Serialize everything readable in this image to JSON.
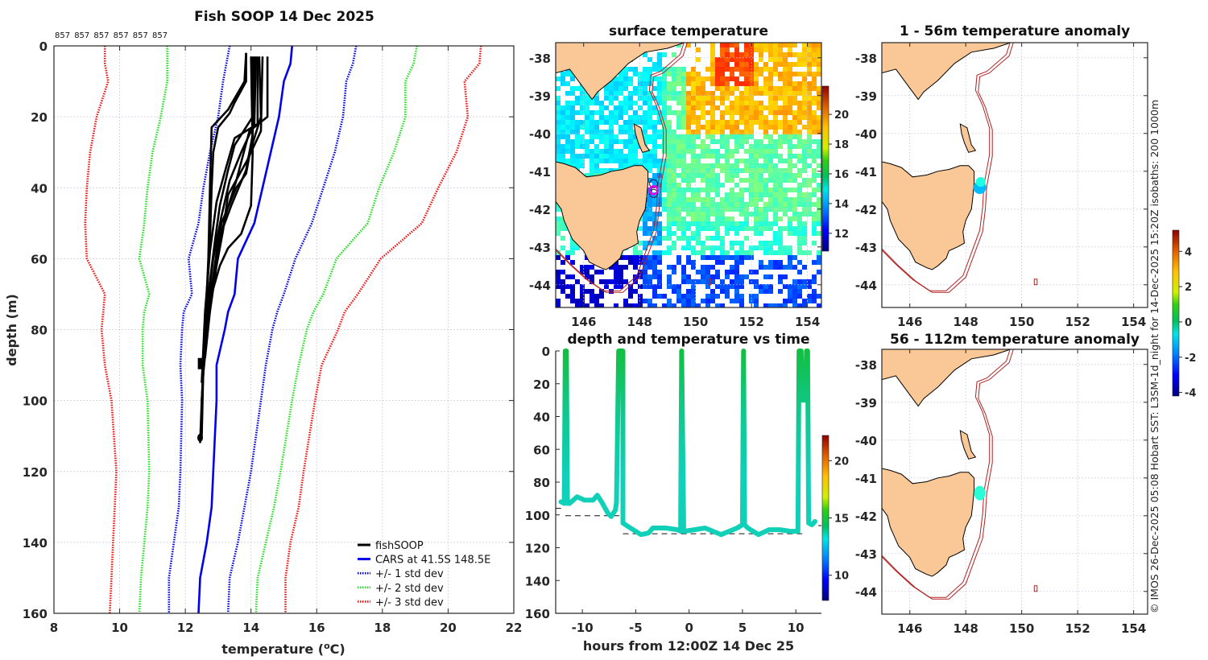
{
  "figure": {
    "credit": "© IMOS 26-Dec-2025 05:08 Hobart SST: L3SM-1d_night for 14-Dec-2025 15:20Z isobaths: 200  1000m"
  },
  "colors": {
    "land": "#f9c896",
    "isobath": "#b22222",
    "cars": "#0000ee",
    "std1": "#0000dd",
    "std2": "#22dd22",
    "std3": "#ee1111",
    "fishsoop": "#000000",
    "marker": "#ee00ee",
    "trace": "#10d0b8"
  },
  "chart_data": [
    {
      "id": "profile",
      "type": "line",
      "title": "Fish SOOP 14 Dec 2025",
      "top_labels": [
        "857",
        "857",
        "857",
        "857",
        "857",
        "857"
      ],
      "xlabel": "temperature (°C)",
      "xlabel_parts": {
        "pre": "temperature (",
        "sup": "o",
        "post": "C)"
      },
      "ylabel": "depth (m)",
      "xlim": [
        8,
        22
      ],
      "ylim": [
        160,
        0
      ],
      "xticks": [
        "8",
        "10",
        "12",
        "14",
        "16",
        "18",
        "20",
        "22"
      ],
      "yticks": [
        "0",
        "20",
        "40",
        "60",
        "80",
        "100",
        "120",
        "140",
        "160"
      ],
      "grid": true,
      "legend_position": "bottom-right",
      "legend": [
        {
          "label": "fishSOOP",
          "style": "solid",
          "color": "#000000"
        },
        {
          "label": "CARS at 41.5S 148.5E",
          "style": "solid",
          "color": "#0000ee"
        },
        {
          "label": "+/- 1 std dev",
          "style": "dotted",
          "color": "#0000dd"
        },
        {
          "label": "+/- 2 std dev",
          "style": "dotted",
          "color": "#22dd22"
        },
        {
          "label": "+/- 3 std dev",
          "style": "dotted",
          "color": "#ee1111"
        }
      ],
      "depth": [
        0,
        5,
        10,
        20,
        30,
        40,
        50,
        60,
        70,
        75,
        80,
        90,
        100,
        120,
        130,
        140,
        150,
        160
      ],
      "series": [
        {
          "name": "CARS at 41.5S 148.5E",
          "values": [
            15.25,
            15.2,
            15.0,
            14.85,
            14.6,
            14.35,
            14.1,
            13.6,
            13.5,
            13.3,
            13.2,
            12.95,
            12.95,
            12.85,
            12.8,
            12.65,
            12.45,
            12.4
          ]
        },
        {
          "name": "+1 std dev",
          "values": [
            17.2,
            17.1,
            16.9,
            16.8,
            16.55,
            16.2,
            15.85,
            15.35,
            15.0,
            14.8,
            14.65,
            14.45,
            14.3,
            14.0,
            13.8,
            13.6,
            13.35,
            13.3
          ]
        },
        {
          "name": "-1 std dev",
          "values": [
            13.35,
            13.25,
            13.15,
            13.0,
            12.75,
            12.55,
            12.4,
            12.1,
            12.2,
            11.95,
            11.9,
            11.85,
            11.9,
            11.85,
            11.8,
            11.65,
            11.5,
            11.5
          ]
        },
        {
          "name": "+2 std dev",
          "values": [
            19.05,
            18.95,
            18.7,
            18.7,
            18.35,
            17.9,
            17.55,
            16.6,
            16.2,
            15.9,
            15.7,
            15.45,
            15.25,
            14.9,
            14.7,
            14.45,
            14.2,
            14.15
          ]
        },
        {
          "name": "-2 std dev",
          "values": [
            11.45,
            11.45,
            11.45,
            11.25,
            11.0,
            10.85,
            10.75,
            10.6,
            10.9,
            10.75,
            10.7,
            10.7,
            10.85,
            10.9,
            10.85,
            10.75,
            10.65,
            10.6
          ]
        },
        {
          "name": "+3 std dev",
          "values": [
            21.0,
            20.95,
            20.5,
            20.6,
            20.25,
            19.7,
            19.2,
            17.95,
            17.25,
            16.85,
            16.65,
            16.15,
            15.95,
            15.6,
            15.45,
            15.2,
            15.05,
            15.05
          ]
        },
        {
          "name": "-3 std dev",
          "values": [
            9.55,
            9.55,
            9.65,
            9.3,
            9.1,
            9.0,
            8.95,
            9.0,
            9.55,
            9.5,
            9.45,
            9.55,
            9.75,
            9.9,
            9.85,
            9.8,
            9.75,
            9.7
          ]
        }
      ],
      "fishsoop_profiles": [
        {
          "depth": [
            2,
            10,
            18,
            23,
            40,
            60,
            80,
            92,
            100,
            112
          ],
          "values": [
            13.85,
            13.8,
            13.3,
            12.8,
            12.75,
            12.7,
            12.6,
            12.55,
            12.5,
            12.45
          ]
        },
        {
          "depth": [
            2,
            10,
            16,
            19,
            23,
            30,
            40,
            55,
            70,
            90,
            110
          ],
          "values": [
            13.85,
            13.85,
            13.5,
            13.35,
            13.0,
            12.85,
            12.8,
            12.75,
            12.65,
            12.55,
            12.5
          ]
        },
        {
          "depth": [
            3,
            20,
            28,
            35,
            45,
            55,
            70,
            90
          ],
          "values": [
            14.05,
            14.05,
            13.5,
            13.3,
            13.05,
            12.9,
            12.7,
            12.55
          ]
        },
        {
          "depth": [
            3,
            22,
            30,
            38,
            48,
            60,
            75,
            95
          ],
          "values": [
            14.15,
            14.1,
            13.7,
            13.35,
            13.1,
            12.85,
            12.65,
            12.5
          ]
        },
        {
          "depth": [
            3,
            25,
            35,
            45,
            55,
            65,
            80,
            100
          ],
          "values": [
            14.1,
            14.05,
            13.85,
            13.4,
            13.0,
            12.85,
            12.6,
            12.5
          ]
        },
        {
          "depth": [
            3,
            20,
            32,
            42,
            52,
            62,
            78,
            92
          ],
          "values": [
            14.25,
            14.3,
            13.9,
            13.3,
            13.15,
            12.95,
            12.7,
            12.55
          ]
        },
        {
          "depth": [
            3,
            20,
            24,
            38,
            47,
            55,
            63,
            80
          ],
          "values": [
            14.5,
            14.5,
            13.95,
            13.55,
            13.25,
            13.05,
            12.9,
            12.6
          ]
        },
        {
          "depth": [
            3,
            30,
            45,
            53,
            57,
            62,
            70,
            90
          ],
          "values": [
            14.0,
            14.05,
            14.0,
            13.7,
            13.3,
            13.05,
            12.8,
            12.55
          ]
        },
        {
          "depth": [
            3,
            22,
            26,
            34,
            44,
            58,
            75,
            95
          ],
          "values": [
            14.2,
            14.2,
            13.5,
            13.25,
            12.95,
            12.75,
            12.6,
            12.5
          ]
        },
        {
          "depth": [
            3,
            24,
            31,
            36,
            40,
            50,
            66,
            88
          ],
          "values": [
            14.35,
            14.3,
            13.95,
            13.85,
            13.55,
            13.1,
            12.85,
            12.6
          ]
        }
      ]
    },
    {
      "id": "surface_map",
      "type": "heatmap",
      "title": "surface temperature",
      "xlim": [
        145,
        154.5
      ],
      "ylim": [
        -44.6,
        -37.6
      ],
      "xticks": [
        "146",
        "148",
        "150",
        "152",
        "154"
      ],
      "yticks": [
        "-38",
        "-39",
        "-40",
        "-41",
        "-42",
        "-43",
        "-44"
      ],
      "colorbar": {
        "range": [
          10.8,
          21.9
        ],
        "ticks": [
          "12",
          "14",
          "16",
          "18",
          "20"
        ],
        "colormap": "jet"
      },
      "vessel_position": {
        "lon": 148.5,
        "lat": -41.5
      }
    },
    {
      "id": "depth_time",
      "type": "scatter",
      "title": "depth and temperature vs time",
      "xlabel": "hours from 12:00Z 14 Dec 25",
      "xlim": [
        -12.5,
        12.4
      ],
      "ylim": [
        160,
        0
      ],
      "xticks": [
        "-10",
        "-5",
        "0",
        "5",
        "10"
      ],
      "yticks": [
        "0",
        "20",
        "40",
        "60",
        "80",
        "100",
        "120",
        "140",
        "160"
      ],
      "colorbar": {
        "range": [
          7.8,
          22.2
        ],
        "ticks": [
          "10",
          "15",
          "20"
        ],
        "colormap": "jet"
      },
      "trace": {
        "hours": [
          -12.0,
          -11.7,
          -11.6,
          -11.5,
          -11.4,
          -11.2,
          -10.5,
          -9.8,
          -9.0,
          -8.6,
          -8.2,
          -7.6,
          -7.3,
          -6.9,
          -6.8,
          -6.6,
          -6.4,
          -6.2,
          -6.2,
          -5.5,
          -4.5,
          -3.8,
          -3.4,
          -2.2,
          -1.1,
          -0.8,
          -0.7,
          -0.5,
          0.5,
          1.5,
          3.0,
          4.5,
          5.0,
          5.1,
          5.2,
          5.5,
          6.5,
          7.5,
          8.5,
          9.5,
          10.2,
          10.3,
          10.5,
          10.6,
          10.9,
          11.0,
          11.1,
          11.2,
          11.5,
          11.8
        ],
        "depth": [
          92,
          93,
          0,
          0,
          93,
          93,
          89,
          91,
          91,
          88,
          92,
          99,
          101,
          97,
          92,
          0,
          0,
          0,
          105,
          108,
          112,
          111,
          108,
          108,
          109,
          110,
          0,
          110,
          109,
          108,
          112,
          108,
          106,
          0,
          106,
          108,
          112,
          109,
          109,
          110,
          110,
          0,
          0,
          30,
          30,
          0,
          0,
          105,
          106,
          104
        ],
        "temperature_surface": 14.6,
        "temperature_bottom": 12.3
      },
      "bottom_lines": [
        {
          "from": -12.5,
          "to": -12.0,
          "depth": 96
        },
        {
          "from": -11.6,
          "to": -6.5,
          "depth": 100.5
        },
        {
          "from": -6.2,
          "to": 10.6,
          "depth": 111.5
        },
        {
          "from": 11.2,
          "to": 12.4,
          "depth": 106.5
        }
      ]
    },
    {
      "id": "anomaly_shallow",
      "type": "scatter",
      "title": "1 - 56m temperature anomaly",
      "xlim": [
        145,
        154.5
      ],
      "ylim": [
        -44.6,
        -37.6
      ],
      "xticks": [
        "146",
        "148",
        "150",
        "152",
        "154"
      ],
      "yticks": [
        "-38",
        "-39",
        "-40",
        "-41",
        "-42",
        "-43",
        "-44"
      ],
      "points": [
        {
          "lon": 148.5,
          "lat": -41.43,
          "anomaly": -1.3
        },
        {
          "lon": 148.53,
          "lat": -41.28,
          "anomaly": -0.4
        }
      ]
    },
    {
      "id": "anomaly_deep",
      "type": "scatter",
      "title": "56 - 112m temperature anomaly",
      "xlim": [
        145,
        154.5
      ],
      "ylim": [
        -44.6,
        -37.6
      ],
      "xticks": [
        "146",
        "148",
        "150",
        "152",
        "154"
      ],
      "yticks": [
        "-38",
        "-39",
        "-40",
        "-41",
        "-42",
        "-43",
        "-44"
      ],
      "points": [
        {
          "lon": 148.5,
          "lat": -41.4,
          "anomaly": -0.3
        }
      ],
      "colorbar": {
        "range": [
          -4.2,
          5.2
        ],
        "ticks": [
          "-4",
          "-2",
          "0",
          "2",
          "4"
        ],
        "colormap": "jet"
      }
    }
  ]
}
